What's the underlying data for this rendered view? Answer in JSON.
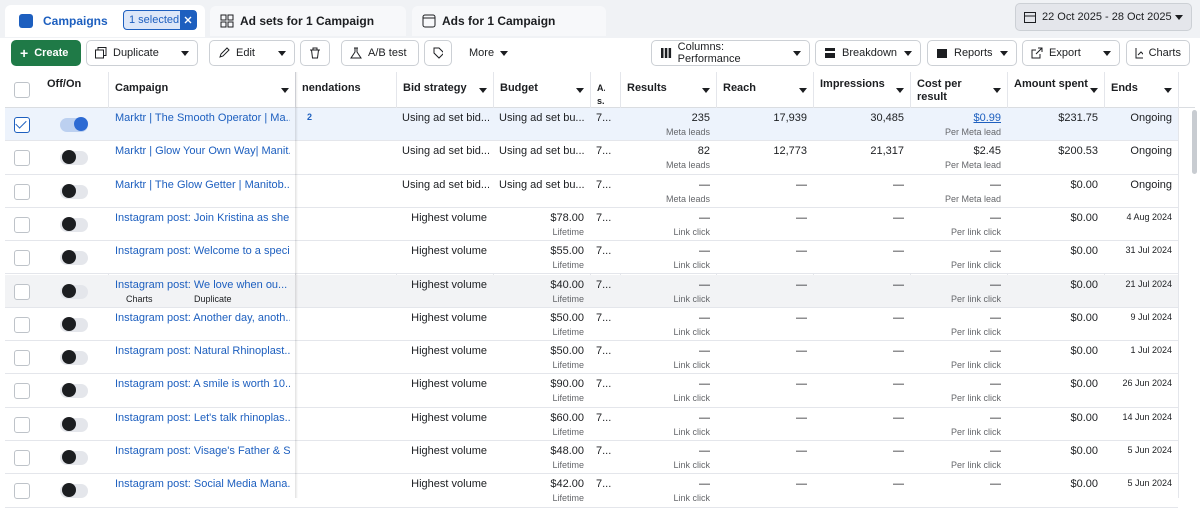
{
  "tabs": {
    "campaigns": "Campaigns",
    "selected": "1 selected",
    "ad_sets": "Ad sets for 1 Campaign",
    "ads": "Ads for 1 Campaign"
  },
  "date_range": "22 Oct 2025 - 28 Oct 2025",
  "toolbar": {
    "create": "Create",
    "duplicate": "Duplicate",
    "edit": "Edit",
    "ab_test": "A/B test",
    "more": "More",
    "columns": "Columns: Performance",
    "breakdown": "Breakdown",
    "reports": "Reports",
    "export": "Export",
    "charts": "Charts"
  },
  "table": {
    "columns": {
      "off_on": "Off/On",
      "campaign": "Campaign",
      "recommendations": "nendations",
      "bid_strategy": "Bid strategy",
      "budget": "Budget",
      "attribution": "A... s...",
      "results": "Results",
      "reach": "Reach",
      "impressions": "Impressions",
      "cost": "Cost per result",
      "amount_spent": "Amount spent",
      "ends": "Ends"
    },
    "rows": [
      {
        "on": true,
        "selected": true,
        "campaign": "Marktr | The Smooth Operator | Ma...",
        "recommendations": "2",
        "bid_strategy": "Using ad set bid...",
        "budget": "Using ad set bu...",
        "attribution": "7...",
        "results": "235",
        "results_note": "Meta leads",
        "reach": "17,939",
        "impressions": "30,485",
        "cost": "$0.99",
        "cost_note": "Per Meta lead",
        "amount_spent": "$231.75",
        "ends": "Ongoing"
      },
      {
        "on": false,
        "selected": false,
        "campaign": "Marktr | Glow Your Own Way| Manit...",
        "bid_strategy": "Using ad set bid...",
        "budget": "Using ad set bu...",
        "attribution": "7...",
        "results": "82",
        "results_note": "Meta leads",
        "reach": "12,773",
        "impressions": "21,317",
        "cost": "$2.45",
        "cost_note": "Per Meta lead",
        "amount_spent": "$200.53",
        "ends": "Ongoing"
      },
      {
        "on": false,
        "selected": false,
        "campaign": "Marktr | The Glow Getter | Manitob...",
        "bid_strategy": "Using ad set bid...",
        "budget": "Using ad set bu...",
        "attribution": "7...",
        "results": "—",
        "results_note": "Meta leads",
        "reach": "—",
        "impressions": "—",
        "cost": "—",
        "cost_note": "Per Meta lead",
        "amount_spent": "$0.00",
        "ends": "Ongoing"
      },
      {
        "on": false,
        "selected": false,
        "campaign": "Instagram post: Join Kristina as she...",
        "bid_strategy": "Highest volume",
        "budget": "$78.00",
        "budget_note": "Lifetime",
        "attribution": "7...",
        "results": "—",
        "results_note": "Link click",
        "reach": "—",
        "impressions": "—",
        "cost": "—",
        "cost_note": "Per link click",
        "amount_spent": "$0.00",
        "ends": "4 Aug 2024"
      },
      {
        "on": false,
        "selected": false,
        "campaign": "Instagram post: Welcome to a speci...",
        "bid_strategy": "Highest volume",
        "budget": "$55.00",
        "budget_note": "Lifetime",
        "attribution": "7...",
        "results": "—",
        "results_note": "Link click",
        "reach": "—",
        "impressions": "—",
        "cost": "—",
        "cost_note": "Per link click",
        "amount_spent": "$0.00",
        "ends": "31 Jul 2024"
      },
      {
        "on": false,
        "selected": false,
        "hover": true,
        "campaign": "Instagram post: We love when ou...",
        "bid_strategy": "Highest volume",
        "budget": "$40.00",
        "budget_note": "Lifetime",
        "attribution": "7...",
        "results": "—",
        "results_note": "Link click",
        "reach": "—",
        "impressions": "—",
        "cost": "—",
        "cost_note": "Per link click",
        "amount_spent": "$0.00",
        "ends": "21 Jul 2024"
      },
      {
        "on": false,
        "selected": false,
        "campaign": "Instagram post: Another day, anoth...",
        "bid_strategy": "Highest volume",
        "budget": "$50.00",
        "budget_note": "Lifetime",
        "attribution": "7...",
        "results": "—",
        "results_note": "Link click",
        "reach": "—",
        "impressions": "—",
        "cost": "—",
        "cost_note": "Per link click",
        "amount_spent": "$0.00",
        "ends": "9 Jul 2024"
      },
      {
        "on": false,
        "selected": false,
        "campaign": "Instagram post: Natural Rhinoplast...",
        "bid_strategy": "Highest volume",
        "budget": "$50.00",
        "budget_note": "Lifetime",
        "attribution": "7...",
        "results": "—",
        "results_note": "Link click",
        "reach": "—",
        "impressions": "—",
        "cost": "—",
        "cost_note": "Per link click",
        "amount_spent": "$0.00",
        "ends": "1 Jul 2024"
      },
      {
        "on": false,
        "selected": false,
        "campaign": "Instagram post: A smile is worth 10...",
        "bid_strategy": "Highest volume",
        "budget": "$90.00",
        "budget_note": "Lifetime",
        "attribution": "7...",
        "results": "—",
        "results_note": "Link click",
        "reach": "—",
        "impressions": "—",
        "cost": "—",
        "cost_note": "Per link click",
        "amount_spent": "$0.00",
        "ends": "26 Jun 2024"
      },
      {
        "on": false,
        "selected": false,
        "campaign": "Instagram post: Let's talk rhinoplas...",
        "bid_strategy": "Highest volume",
        "budget": "$60.00",
        "budget_note": "Lifetime",
        "attribution": "7...",
        "results": "—",
        "results_note": "Link click",
        "reach": "—",
        "impressions": "—",
        "cost": "—",
        "cost_note": "Per link click",
        "amount_spent": "$0.00",
        "ends": "14 Jun 2024"
      },
      {
        "on": false,
        "selected": false,
        "campaign": "Instagram post: Visage's Father & S...",
        "bid_strategy": "Highest volume",
        "budget": "$48.00",
        "budget_note": "Lifetime",
        "attribution": "7...",
        "results": "—",
        "results_note": "Link click",
        "reach": "—",
        "impressions": "—",
        "cost": "—",
        "cost_note": "Per link click",
        "amount_spent": "$0.00",
        "ends": "5 Jun 2024"
      },
      {
        "on": false,
        "selected": false,
        "campaign": "Instagram post: Social Media Mana...",
        "bid_strategy": "Highest volume",
        "budget": "$42.00",
        "budget_note": "Lifetime",
        "attribution": "7...",
        "results": "—",
        "results_note": "Link click",
        "reach": "—",
        "impressions": "—",
        "cost": "—",
        "amount_spent": "$0.00",
        "ends": "5 Jun 2024"
      }
    ]
  },
  "row_actions": {
    "charts": "Charts",
    "duplicate": "Duplicate"
  }
}
